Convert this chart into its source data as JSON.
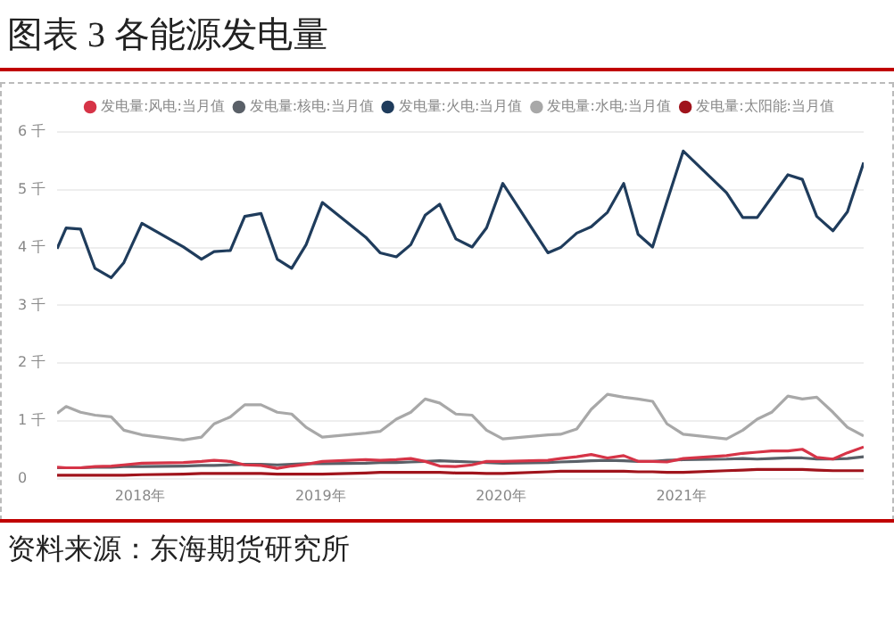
{
  "chart_data": {
    "type": "line",
    "title": "图表 3 各能源发电量",
    "annotations": [
      "资料来源：东海期货研究所"
    ],
    "x": [
      2017.54,
      2017.59,
      2017.67,
      2017.75,
      2017.84,
      2017.91,
      2018.01,
      2018.24,
      2018.34,
      2018.41,
      2018.5,
      2018.58,
      2018.67,
      2018.76,
      2018.84,
      2018.92,
      2019.01,
      2019.25,
      2019.33,
      2019.42,
      2019.5,
      2019.58,
      2019.66,
      2019.75,
      2019.84,
      2019.92,
      2020.01,
      2020.26,
      2020.33,
      2020.42,
      2020.5,
      2020.59,
      2020.68,
      2020.76,
      2020.84,
      2020.92,
      2021.01,
      2021.25,
      2021.34,
      2021.42,
      2021.5,
      2021.59,
      2021.67,
      2021.75,
      2021.84,
      2021.92,
      2022.01
    ],
    "xlim": [
      2017.54,
      2022.01
    ],
    "xticks": [
      {
        "value": 2018,
        "label": "2018年"
      },
      {
        "value": 2019,
        "label": "2019年"
      },
      {
        "value": 2020,
        "label": "2020年"
      },
      {
        "value": 2021,
        "label": "2021年"
      }
    ],
    "ylim": [
      0,
      6
    ],
    "yticks": [
      0,
      {
        "value": 1,
        "label": "1 千"
      },
      {
        "value": 2,
        "label": "2 千"
      },
      {
        "value": 3,
        "label": "3 千"
      },
      {
        "value": 4,
        "label": "4 千"
      },
      {
        "value": 5,
        "label": "5 千"
      },
      {
        "value": 6,
        "label": "6 千"
      }
    ],
    "grid": "y",
    "legend": "top",
    "marker": "none",
    "line_style": "solid",
    "series": [
      {
        "name": "发电量:风电:当月值",
        "color": "#d63447",
        "values": [
          0.2,
          0.19,
          0.19,
          0.21,
          0.22,
          0.24,
          0.27,
          0.28,
          0.3,
          0.32,
          0.3,
          0.24,
          0.23,
          0.18,
          0.22,
          0.25,
          0.3,
          0.33,
          0.32,
          0.33,
          0.35,
          0.3,
          0.22,
          0.21,
          0.24,
          0.3,
          0.3,
          0.32,
          0.35,
          0.38,
          0.42,
          0.36,
          0.4,
          0.3,
          0.3,
          0.29,
          0.35,
          0.4,
          0.44,
          0.46,
          0.48,
          0.48,
          0.51,
          0.37,
          0.34,
          0.45,
          0.55
        ]
      },
      {
        "name": "发电量:核电:当月值",
        "color": "#5a6068",
        "values": [
          0.19,
          0.19,
          0.19,
          0.2,
          0.2,
          0.21,
          0.21,
          0.22,
          0.23,
          0.23,
          0.24,
          0.25,
          0.25,
          0.24,
          0.25,
          0.26,
          0.26,
          0.27,
          0.28,
          0.28,
          0.29,
          0.3,
          0.31,
          0.3,
          0.29,
          0.28,
          0.27,
          0.28,
          0.29,
          0.3,
          0.31,
          0.32,
          0.31,
          0.3,
          0.3,
          0.32,
          0.33,
          0.34,
          0.35,
          0.34,
          0.35,
          0.36,
          0.36,
          0.34,
          0.34,
          0.35,
          0.38
        ]
      },
      {
        "name": "发电量:火电:当月值",
        "color": "#1f3c5c",
        "values": [
          3.98,
          4.34,
          4.32,
          3.64,
          3.48,
          3.74,
          4.42,
          4.01,
          3.8,
          3.93,
          3.95,
          4.54,
          4.59,
          3.8,
          3.64,
          4.05,
          4.78,
          4.18,
          3.91,
          3.84,
          4.05,
          4.56,
          4.75,
          4.15,
          4.01,
          4.34,
          5.11,
          3.91,
          4.0,
          4.25,
          4.36,
          4.61,
          5.11,
          4.23,
          4.01,
          4.8,
          5.67,
          4.95,
          4.52,
          4.52,
          4.87,
          5.26,
          5.18,
          4.54,
          4.29,
          4.62,
          5.47
        ]
      },
      {
        "name": "发电量:水电:当月值",
        "color": "#a8a8a8",
        "values": [
          1.13,
          1.25,
          1.15,
          1.1,
          1.07,
          0.84,
          0.76,
          0.67,
          0.72,
          0.95,
          1.07,
          1.28,
          1.28,
          1.15,
          1.12,
          0.89,
          0.72,
          0.79,
          0.82,
          1.03,
          1.15,
          1.38,
          1.31,
          1.12,
          1.1,
          0.84,
          0.69,
          0.76,
          0.77,
          0.86,
          1.2,
          1.46,
          1.41,
          1.38,
          1.34,
          0.95,
          0.77,
          0.69,
          0.84,
          1.03,
          1.15,
          1.43,
          1.38,
          1.41,
          1.15,
          0.89,
          0.74
        ]
      },
      {
        "name": "发电量:太阳能:当月值",
        "color": "#a0141c",
        "values": [
          0.06,
          0.06,
          0.06,
          0.06,
          0.06,
          0.06,
          0.07,
          0.08,
          0.09,
          0.09,
          0.09,
          0.09,
          0.09,
          0.08,
          0.08,
          0.08,
          0.08,
          0.1,
          0.11,
          0.11,
          0.11,
          0.11,
          0.11,
          0.1,
          0.1,
          0.09,
          0.09,
          0.12,
          0.13,
          0.13,
          0.13,
          0.13,
          0.13,
          0.12,
          0.12,
          0.11,
          0.11,
          0.14,
          0.15,
          0.16,
          0.16,
          0.16,
          0.16,
          0.15,
          0.14,
          0.14,
          0.14
        ]
      }
    ]
  }
}
